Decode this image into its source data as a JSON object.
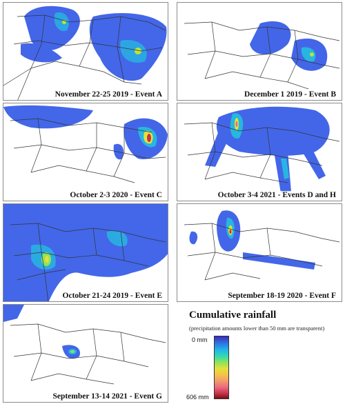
{
  "panels": [
    {
      "caption": "November 22-25 2019 - Event A"
    },
    {
      "caption": "December 1 2019 - Event B"
    },
    {
      "caption": "October 2-3 2020 - Event C"
    },
    {
      "caption": "October 3-4 2021 - Events D and H"
    },
    {
      "caption": "October 21-24 2019 - Event E"
    },
    {
      "caption": "September 18-19 2020 - Event F"
    },
    {
      "caption": "September 13-14 2021 - Event G"
    }
  ],
  "legend": {
    "title": "Cumulative rainfall",
    "subtitle": "(precipitation amounts lower than 50 mm are transparent)",
    "min_label": "0 mm",
    "max_label": "606 mm",
    "colors": [
      "#3b2bb8",
      "#2f6fe0",
      "#22b7e8",
      "#34d9b0",
      "#8fe35a",
      "#e3e13a",
      "#f4c24a",
      "#f29a6a",
      "#ea6a7e",
      "#c8304a",
      "#7a0f12"
    ]
  }
}
